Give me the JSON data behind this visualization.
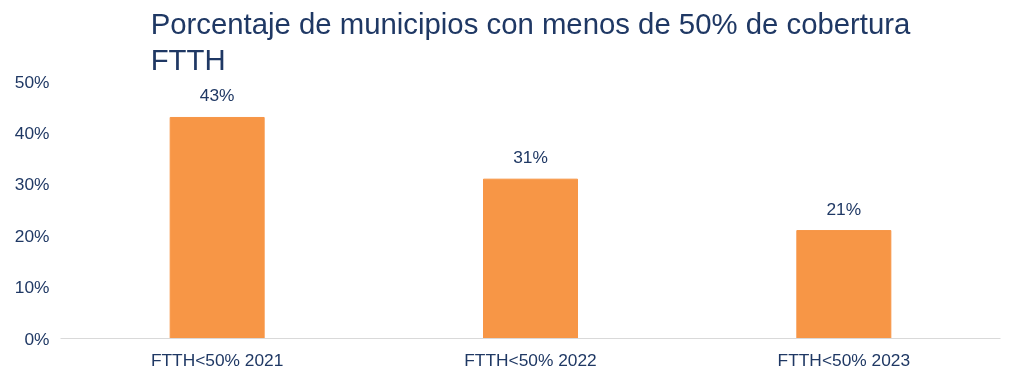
{
  "chart_data": {
    "type": "bar",
    "title": "Porcentaje de municipios con menos de 50% de cobertura FTTH",
    "categories": [
      "FTTH<50% 2021",
      "FTTH<50% 2022",
      "FTTH<50% 2023"
    ],
    "values": [
      43,
      31,
      21
    ],
    "value_labels": [
      "43%",
      "31%",
      "21%"
    ],
    "color": "#f79646",
    "ylim": [
      0,
      50
    ],
    "yticks": [
      {
        "value": 0,
        "label": "0%"
      },
      {
        "value": 10,
        "label": "10%"
      },
      {
        "value": 20,
        "label": "20%"
      },
      {
        "value": 30,
        "label": "30%"
      },
      {
        "value": 40,
        "label": "40%"
      },
      {
        "value": 50,
        "label": "50%"
      }
    ],
    "grid": false
  }
}
